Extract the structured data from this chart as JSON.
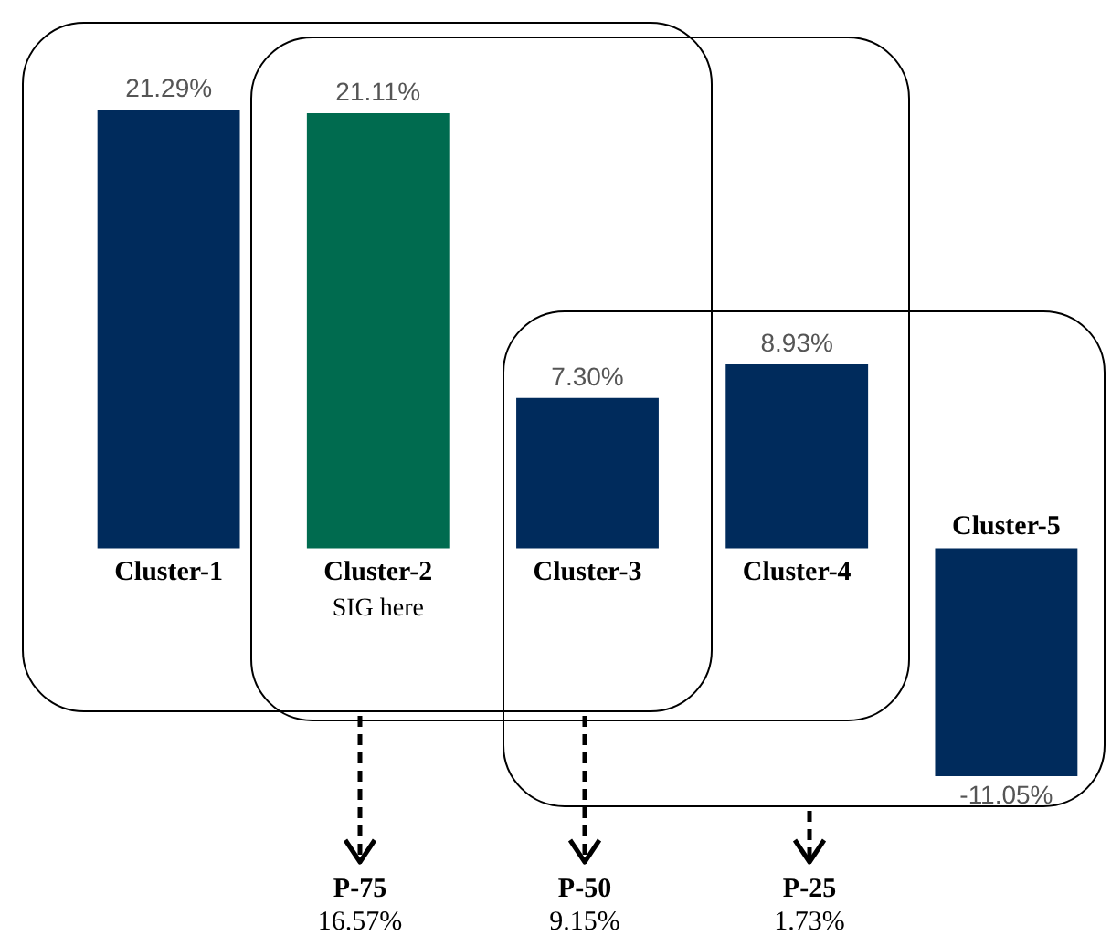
{
  "chart_data": {
    "type": "bar",
    "categories": [
      "Cluster-1",
      "Cluster-2",
      "Cluster-3",
      "Cluster-4",
      "Cluster-5"
    ],
    "values": [
      21.29,
      21.11,
      7.3,
      8.93,
      -11.05
    ],
    "colors": [
      "#002b5c",
      "#006b4f",
      "#002b5c",
      "#002b5c",
      "#002b5c"
    ],
    "value_labels": [
      "21.29%",
      "21.11%",
      "7.30%",
      "8.93%",
      "-11.05%"
    ],
    "annotations": [
      "SIG here",
      "P-75",
      "16.57%",
      "P-50",
      "9.15%",
      "P-25",
      "1.73%"
    ]
  }
}
